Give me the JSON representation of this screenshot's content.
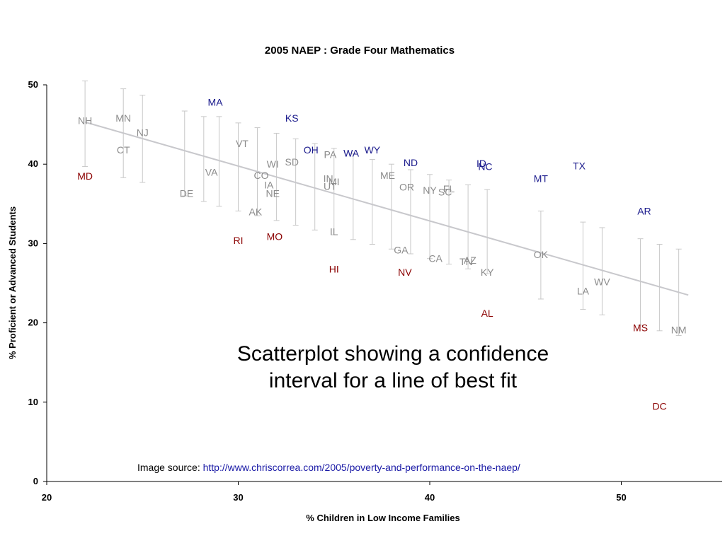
{
  "chart_data": {
    "type": "scatter",
    "title": "2005 NAEP : Grade Four Mathematics",
    "xlabel": "% Children in Low Income Families",
    "ylabel": "% Proficient or Advanced Students",
    "xlim": [
      20,
      55
    ],
    "ylim": [
      0,
      50
    ],
    "xticks": [
      20,
      30,
      40,
      50
    ],
    "yticks": [
      0,
      10,
      20,
      30,
      40,
      50
    ],
    "grid": false,
    "colors": {
      "above": "#1a1a8c",
      "within": "#8c8c8c",
      "below": "#8b0000",
      "fit_line": "#c8c8cc",
      "interval": "#c8c8c8"
    },
    "fit_line": {
      "x": [
        22,
        53.5
      ],
      "y": [
        45.3,
        23.5
      ]
    },
    "intervals": [
      {
        "x": 22,
        "low": 39.7,
        "high": 50.5
      },
      {
        "x": 24,
        "low": 38.3,
        "high": 49.5
      },
      {
        "x": 25,
        "low": 37.7,
        "high": 48.7
      },
      {
        "x": 27.2,
        "low": 36.0,
        "high": 46.7
      },
      {
        "x": 28.2,
        "low": 35.3,
        "high": 46.0
      },
      {
        "x": 29,
        "low": 34.7,
        "high": 46.0
      },
      {
        "x": 30,
        "low": 34.1,
        "high": 45.2
      },
      {
        "x": 31,
        "low": 33.5,
        "high": 44.6
      },
      {
        "x": 32,
        "low": 32.9,
        "high": 43.9
      },
      {
        "x": 33,
        "low": 32.3,
        "high": 43.2
      },
      {
        "x": 34,
        "low": 31.7,
        "high": 42.6
      },
      {
        "x": 35,
        "low": 31.1,
        "high": 42.0
      },
      {
        "x": 36,
        "low": 30.5,
        "high": 41.3
      },
      {
        "x": 37,
        "low": 29.9,
        "high": 40.6
      },
      {
        "x": 38,
        "low": 29.3,
        "high": 40.0
      },
      {
        "x": 39,
        "low": 28.7,
        "high": 39.3
      },
      {
        "x": 40,
        "low": 28.1,
        "high": 38.7
      },
      {
        "x": 41,
        "low": 27.4,
        "high": 38.0
      },
      {
        "x": 42,
        "low": 26.8,
        "high": 37.4
      },
      {
        "x": 43,
        "low": 26.2,
        "high": 36.8
      },
      {
        "x": 45.8,
        "low": 23.0,
        "high": 34.1
      },
      {
        "x": 48,
        "low": 21.7,
        "high": 32.7
      },
      {
        "x": 49,
        "low": 21.0,
        "high": 32.0
      },
      {
        "x": 51,
        "low": 19.7,
        "high": 30.6
      },
      {
        "x": 52,
        "low": 19.0,
        "high": 29.9
      },
      {
        "x": 53,
        "low": 18.4,
        "high": 29.3
      }
    ],
    "points": [
      {
        "label": "NH",
        "x": 22.0,
        "y": 45.5,
        "group": "within"
      },
      {
        "label": "MN",
        "x": 24.0,
        "y": 45.8,
        "group": "within"
      },
      {
        "label": "NJ",
        "x": 25.0,
        "y": 44.0,
        "group": "within"
      },
      {
        "label": "CT",
        "x": 24.0,
        "y": 41.8,
        "group": "within"
      },
      {
        "label": "MD",
        "x": 22.0,
        "y": 38.5,
        "group": "below"
      },
      {
        "label": "MA",
        "x": 28.8,
        "y": 47.8,
        "group": "above"
      },
      {
        "label": "KS",
        "x": 32.8,
        "y": 45.8,
        "group": "above"
      },
      {
        "label": "VT",
        "x": 30.2,
        "y": 42.6,
        "group": "within"
      },
      {
        "label": "OH",
        "x": 33.8,
        "y": 41.8,
        "group": "above"
      },
      {
        "label": "WY",
        "x": 37.0,
        "y": 41.8,
        "group": "above"
      },
      {
        "label": "PA",
        "x": 34.8,
        "y": 41.2,
        "group": "within"
      },
      {
        "label": "WA",
        "x": 35.9,
        "y": 41.4,
        "group": "above"
      },
      {
        "label": "SD",
        "x": 32.8,
        "y": 40.3,
        "group": "within"
      },
      {
        "label": "WI",
        "x": 31.8,
        "y": 40.0,
        "group": "within"
      },
      {
        "label": "ND",
        "x": 39.0,
        "y": 40.2,
        "group": "above"
      },
      {
        "label": "ID",
        "x": 42.7,
        "y": 40.1,
        "group": "above"
      },
      {
        "label": "NC",
        "x": 42.9,
        "y": 39.7,
        "group": "above"
      },
      {
        "label": "TX",
        "x": 47.8,
        "y": 39.8,
        "group": "above"
      },
      {
        "label": "VA",
        "x": 28.6,
        "y": 39.0,
        "group": "within"
      },
      {
        "label": "CO",
        "x": 31.2,
        "y": 38.6,
        "group": "within"
      },
      {
        "label": "ME",
        "x": 37.8,
        "y": 38.6,
        "group": "within"
      },
      {
        "label": "MT",
        "x": 45.8,
        "y": 38.2,
        "group": "above"
      },
      {
        "label": "IN",
        "x": 34.7,
        "y": 38.2,
        "group": "within"
      },
      {
        "label": "MI",
        "x": 35.0,
        "y": 37.8,
        "group": "within"
      },
      {
        "label": "UT",
        "x": 34.8,
        "y": 37.2,
        "group": "within"
      },
      {
        "label": "IA",
        "x": 31.6,
        "y": 37.4,
        "group": "within"
      },
      {
        "label": "OR",
        "x": 38.8,
        "y": 37.1,
        "group": "within"
      },
      {
        "label": "FL",
        "x": 41.0,
        "y": 36.9,
        "group": "within"
      },
      {
        "label": "NY",
        "x": 40.0,
        "y": 36.7,
        "group": "within"
      },
      {
        "label": "SC",
        "x": 40.8,
        "y": 36.5,
        "group": "within"
      },
      {
        "label": "DE",
        "x": 27.3,
        "y": 36.3,
        "group": "within"
      },
      {
        "label": "NE",
        "x": 31.8,
        "y": 36.3,
        "group": "within"
      },
      {
        "label": "AR",
        "x": 51.2,
        "y": 34.1,
        "group": "above"
      },
      {
        "label": "AK",
        "x": 30.9,
        "y": 34.0,
        "group": "within"
      },
      {
        "label": "IL",
        "x": 35.0,
        "y": 31.5,
        "group": "within"
      },
      {
        "label": "MO",
        "x": 31.9,
        "y": 30.9,
        "group": "below"
      },
      {
        "label": "RI",
        "x": 30.0,
        "y": 30.4,
        "group": "below"
      },
      {
        "label": "GA",
        "x": 38.5,
        "y": 29.2,
        "group": "within"
      },
      {
        "label": "OK",
        "x": 45.8,
        "y": 28.6,
        "group": "within"
      },
      {
        "label": "CA",
        "x": 40.3,
        "y": 28.1,
        "group": "within"
      },
      {
        "label": "AZ",
        "x": 42.1,
        "y": 27.9,
        "group": "within"
      },
      {
        "label": "TN",
        "x": 41.9,
        "y": 27.7,
        "group": "within"
      },
      {
        "label": "HI",
        "x": 35.0,
        "y": 26.8,
        "group": "below"
      },
      {
        "label": "NV",
        "x": 38.7,
        "y": 26.4,
        "group": "below"
      },
      {
        "label": "KY",
        "x": 43.0,
        "y": 26.4,
        "group": "within"
      },
      {
        "label": "WV",
        "x": 49.0,
        "y": 25.2,
        "group": "within"
      },
      {
        "label": "LA",
        "x": 48.0,
        "y": 24.0,
        "group": "within"
      },
      {
        "label": "AL",
        "x": 43.0,
        "y": 21.2,
        "group": "below"
      },
      {
        "label": "MS",
        "x": 51.0,
        "y": 19.4,
        "group": "below"
      },
      {
        "label": "NM",
        "x": 53.0,
        "y": 19.1,
        "group": "within"
      },
      {
        "label": "DC",
        "x": 52.0,
        "y": 9.5,
        "group": "below"
      }
    ]
  },
  "overlay": {
    "caption_line1": "Scatterplot showing a confidence",
    "caption_line2": "interval for a line of best fit",
    "source_label": "Image source: ",
    "source_link": "http://www.chriscorrea.com/2005/poverty-and-performance-on-the-naep/"
  }
}
